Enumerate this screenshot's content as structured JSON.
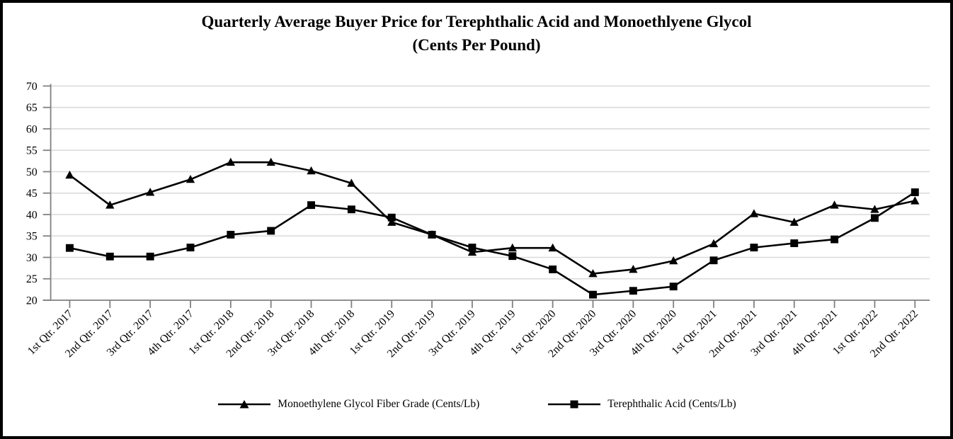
{
  "window": {
    "background": "#ffffff",
    "border_color": "#000000"
  },
  "chart_data": {
    "type": "line",
    "title_line1": "Quarterly Average Buyer Price for Terephthalic Acid and Monoethlyene Glycol",
    "title_line2": "(Cents Per Pound)",
    "xlabel": "",
    "ylabel": "",
    "ylim": [
      20,
      70
    ],
    "y_ticks": [
      20,
      25,
      30,
      35,
      40,
      45,
      50,
      55,
      60,
      65,
      70
    ],
    "grid": "horizontal",
    "legend_position": "bottom",
    "axis_color": "#808080",
    "gridline_color": "#dadada",
    "text_color": "#000000",
    "categories": [
      "1st Qtr. 2017",
      "2nd Qtr. 2017",
      "3rd Qtr. 2017",
      "4th Qtr. 2017",
      "1st Qtr. 2018",
      "2nd Qtr. 2018",
      "3rd Qtr. 2018",
      "4th Qtr. 2018",
      "1st Qtr. 2019",
      "2nd Qtr. 2019",
      "3rd Qtr. 2019",
      "4th Qtr. 2019",
      "1st Qtr. 2020",
      "2nd Qtr. 2020",
      "3rd Qtr. 2020",
      "4th Qtr. 2020",
      "1st Qtr. 2021",
      "2nd Qtr. 2021",
      "3rd Qtr. 2021",
      "4th Qtr. 2021",
      "1st Qtr. 2022",
      "2nd Qtr. 2022"
    ],
    "series": [
      {
        "name": "Monoethylene Glycol Fiber Grade (Cents/Lb)",
        "marker": "triangle",
        "color": "#000000",
        "values": [
          49.2,
          42.2,
          45.2,
          48.2,
          52.2,
          52.2,
          50.2,
          47.3,
          38.2,
          35.3,
          31.2,
          32.2,
          32.2,
          26.2,
          27.2,
          29.2,
          33.2,
          40.2,
          38.2,
          42.2,
          41.2,
          43.2
        ]
      },
      {
        "name": "Terephthalic Acid (Cents/Lb)",
        "marker": "square",
        "color": "#000000",
        "values": [
          32.2,
          30.2,
          30.2,
          32.3,
          35.3,
          36.2,
          42.2,
          41.2,
          39.3,
          35.3,
          32.3,
          30.3,
          27.2,
          21.3,
          22.2,
          23.2,
          29.3,
          32.3,
          33.3,
          34.2,
          39.2,
          45.2
        ]
      }
    ]
  }
}
